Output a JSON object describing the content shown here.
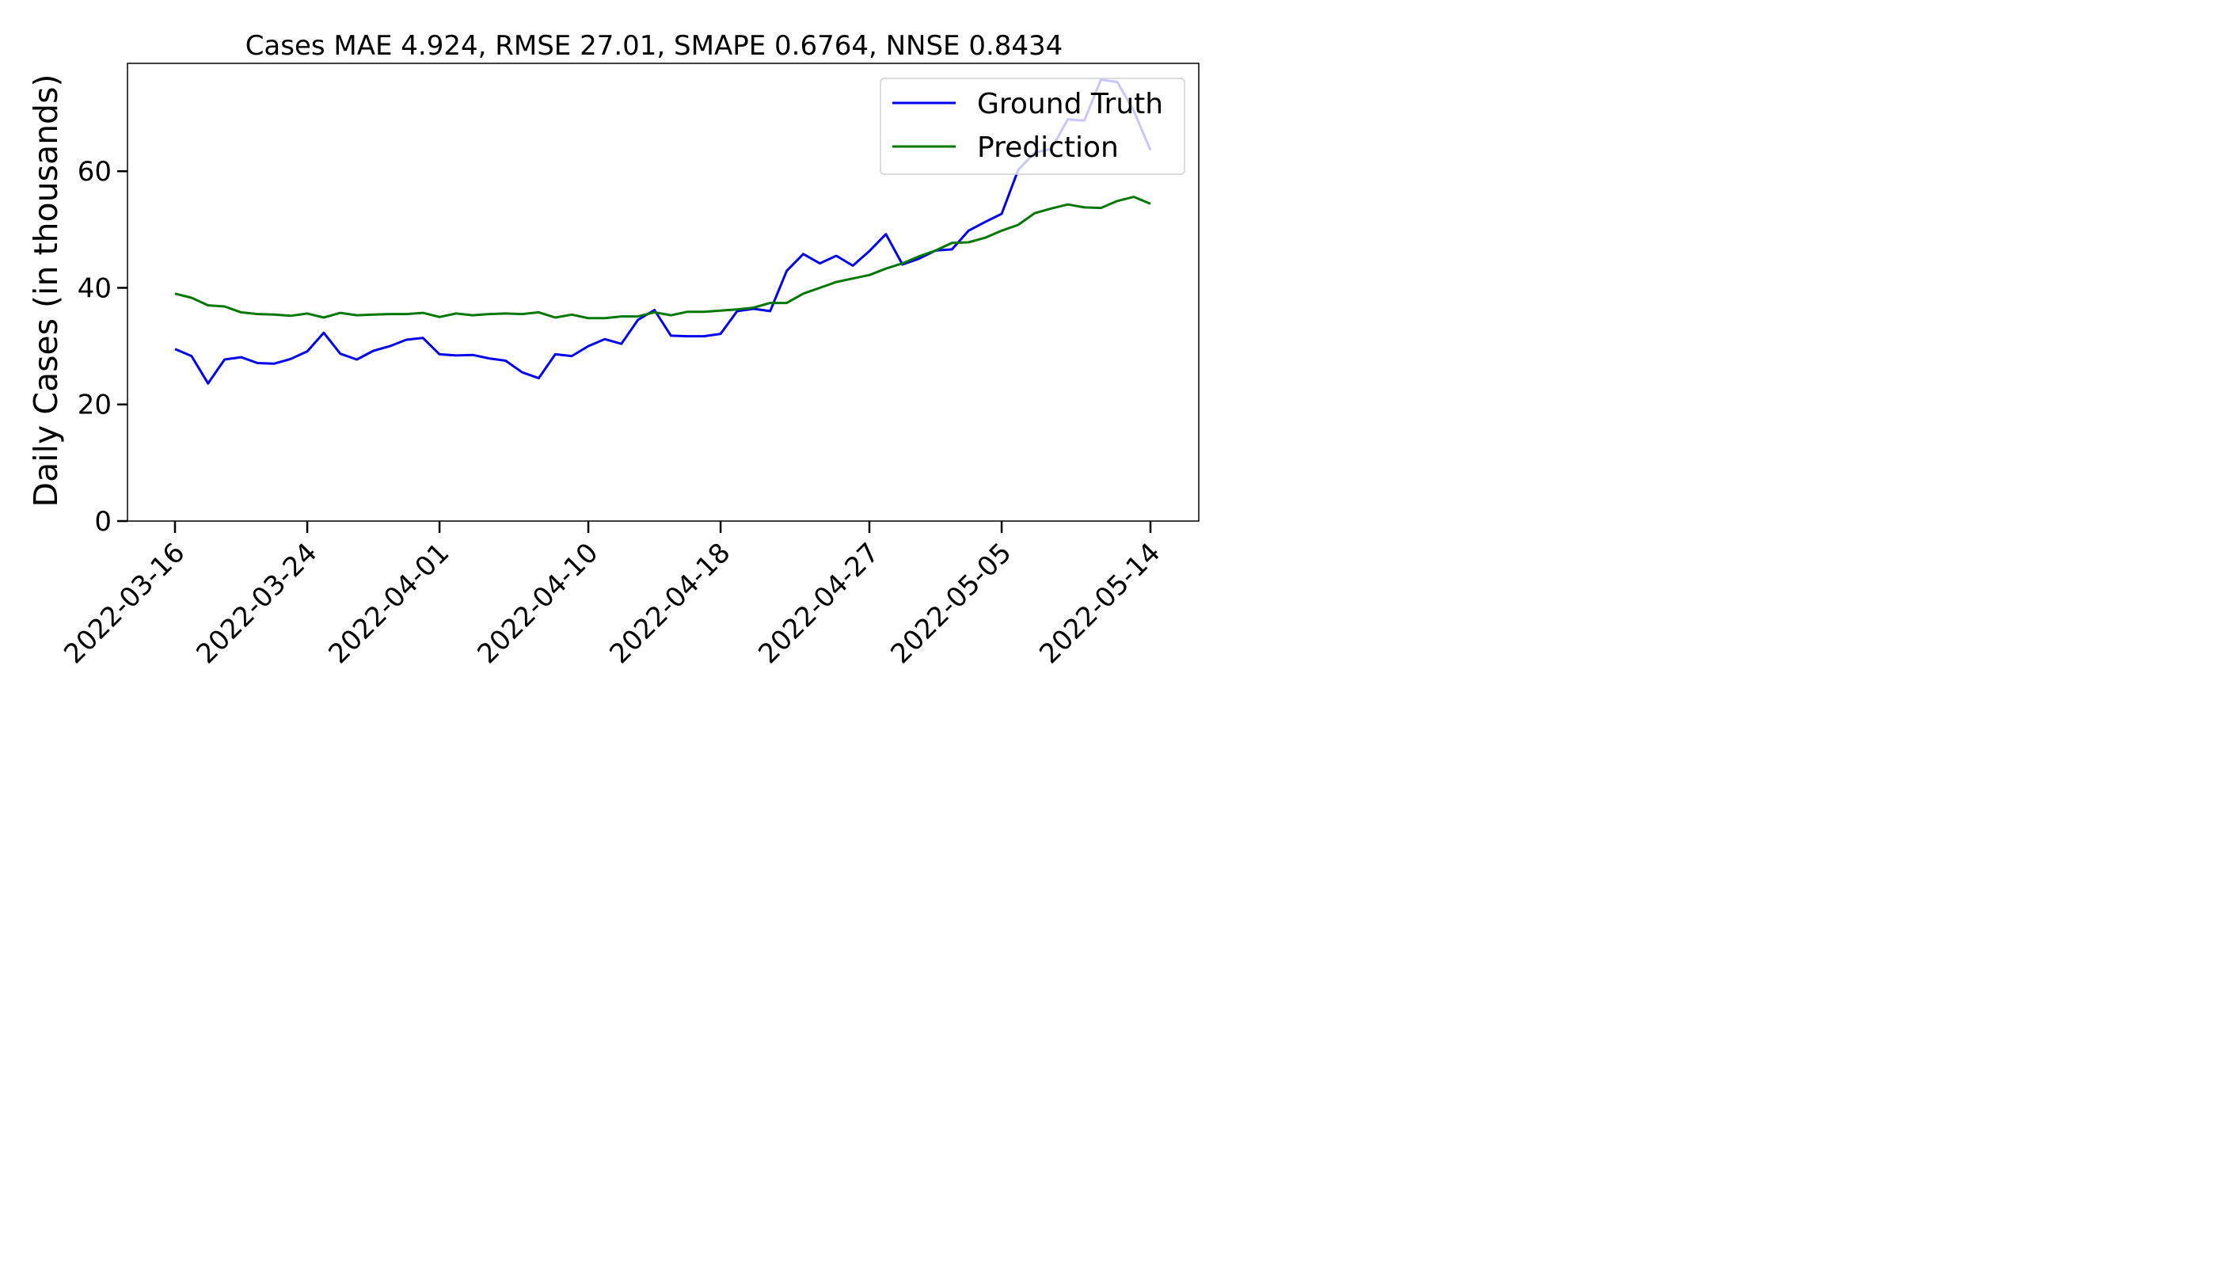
{
  "chart_data": {
    "type": "line",
    "title": "Cases MAE 4.924, RMSE 27.01, SMAPE 0.6764, NNSE 0.8434",
    "xlabel": "",
    "ylabel": "Daily Cases (in thousands)",
    "x_start": "2022-03-16",
    "x_end": "2022-05-14",
    "x_ticks": [
      "2022-03-16",
      "2022-03-24",
      "2022-04-01",
      "2022-04-10",
      "2022-04-18",
      "2022-04-27",
      "2022-05-05",
      "2022-05-14"
    ],
    "y_ticks": [
      0,
      20,
      40,
      60
    ],
    "ylim": [
      0,
      78.5
    ],
    "grid": false,
    "legend_position": "top-right",
    "series": [
      {
        "name": "Ground Truth",
        "color": "#0000ee",
        "values": [
          29.5,
          28.3,
          23.6,
          27.7,
          28.1,
          27.1,
          27.0,
          27.8,
          29.1,
          32.3,
          28.7,
          27.7,
          29.2,
          30.0,
          31.1,
          31.4,
          28.6,
          28.4,
          28.5,
          27.9,
          27.5,
          25.5,
          24.5,
          28.6,
          28.3,
          30.0,
          31.2,
          30.4,
          34.5,
          36.2,
          31.8,
          31.7,
          31.7,
          32.1,
          36.0,
          36.4,
          36.0,
          42.9,
          45.8,
          44.2,
          45.5,
          43.8,
          46.3,
          49.2,
          44.0,
          45.0,
          46.4,
          46.6,
          49.8,
          51.3,
          52.7,
          60.2,
          63.2,
          63.8,
          68.9,
          68.7,
          75.7,
          75.3,
          70.3,
          63.6
        ]
      },
      {
        "name": "Prediction",
        "color": "#007700",
        "values": [
          39.0,
          38.3,
          37.0,
          36.8,
          35.8,
          35.5,
          35.4,
          35.2,
          35.6,
          34.9,
          35.7,
          35.3,
          35.4,
          35.5,
          35.5,
          35.7,
          35.0,
          35.6,
          35.3,
          35.5,
          35.6,
          35.5,
          35.8,
          34.9,
          35.4,
          34.8,
          34.8,
          35.1,
          35.1,
          35.8,
          35.3,
          35.9,
          35.9,
          36.1,
          36.3,
          36.6,
          37.4,
          37.4,
          39.0,
          40.0,
          41.0,
          41.6,
          42.2,
          43.3,
          44.2,
          45.4,
          46.4,
          47.7,
          47.8,
          48.6,
          49.8,
          50.8,
          52.8,
          53.6,
          54.3,
          53.8,
          53.7,
          54.9,
          55.6,
          54.4
        ]
      }
    ]
  }
}
